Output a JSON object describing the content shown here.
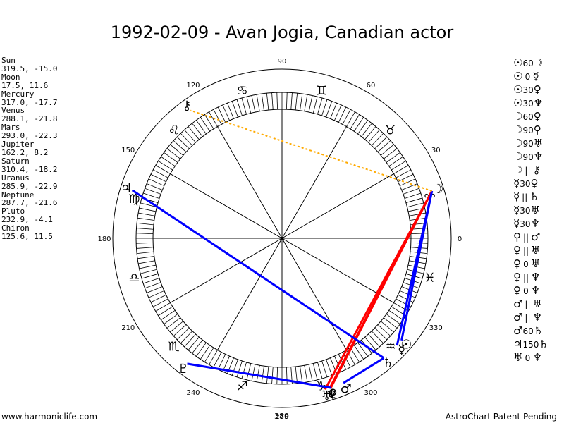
{
  "title": "1992-02-09 - Avan Jogia, Canadian actor",
  "planets": [
    {
      "name": "Sun",
      "symbol": "☉",
      "coords": "319.5, -15.0",
      "lon": 319.5
    },
    {
      "name": "Moon",
      "symbol": "☽",
      "coords": "17.5, 11.6",
      "lon": 17.5
    },
    {
      "name": "Mercury",
      "symbol": "☿",
      "coords": "317.0, -17.7",
      "lon": 317.0
    },
    {
      "name": "Venus",
      "symbol": "♀",
      "coords": "288.1, -21.8",
      "lon": 288.1
    },
    {
      "name": "Mars",
      "symbol": "♂",
      "coords": "293.0, -22.3",
      "lon": 293.0
    },
    {
      "name": "Jupiter",
      "symbol": "♃",
      "coords": "162.2, 8.2",
      "lon": 162.2
    },
    {
      "name": "Saturn",
      "symbol": "♄",
      "coords": "310.4, -18.2",
      "lon": 310.4
    },
    {
      "name": "Uranus",
      "symbol": "♅",
      "coords": "285.9, -22.9",
      "lon": 285.9
    },
    {
      "name": "Neptune",
      "symbol": "♆",
      "coords": "287.7, -21.6",
      "lon": 287.7
    },
    {
      "name": "Pluto",
      "symbol": "♇",
      "coords": "232.9, -4.1",
      "lon": 232.9
    },
    {
      "name": "Chiron",
      "symbol": "⚷",
      "coords": "125.6, 11.5",
      "lon": 125.6
    }
  ],
  "aspect_list": [
    {
      "p1": "☉",
      "aspect": "60",
      "p2": "☽"
    },
    {
      "p1": "☉",
      "aspect": "0",
      "p2": "☿"
    },
    {
      "p1": "☉",
      "aspect": "30",
      "p2": "♀"
    },
    {
      "p1": "☉",
      "aspect": "30",
      "p2": "♆"
    },
    {
      "p1": "☽",
      "aspect": "60",
      "p2": "♀"
    },
    {
      "p1": "☽",
      "aspect": "90",
      "p2": "♀"
    },
    {
      "p1": "☽",
      "aspect": "90",
      "p2": "♅"
    },
    {
      "p1": "☽",
      "aspect": "90",
      "p2": "♆"
    },
    {
      "p1": "☽",
      "aspect": "||",
      "p2": "⚷"
    },
    {
      "p1": "☿",
      "aspect": "30",
      "p2": "♀"
    },
    {
      "p1": "☿",
      "aspect": "||",
      "p2": "♄"
    },
    {
      "p1": "☿",
      "aspect": "30",
      "p2": "♅"
    },
    {
      "p1": "☿",
      "aspect": "30",
      "p2": "♆"
    },
    {
      "p1": "♀",
      "aspect": "||",
      "p2": "♂"
    },
    {
      "p1": "♀",
      "aspect": "||",
      "p2": "♅"
    },
    {
      "p1": "♀",
      "aspect": "0",
      "p2": "♅"
    },
    {
      "p1": "♀",
      "aspect": "||",
      "p2": "♆"
    },
    {
      "p1": "♀",
      "aspect": "0",
      "p2": "♆"
    },
    {
      "p1": "♂",
      "aspect": "||",
      "p2": "♅"
    },
    {
      "p1": "♂",
      "aspect": "||",
      "p2": "♆"
    },
    {
      "p1": "♂",
      "aspect": "60",
      "p2": "♄"
    },
    {
      "p1": "♃",
      "aspect": "150",
      "p2": "♄"
    },
    {
      "p1": "♅",
      "aspect": "0",
      "p2": "♆"
    }
  ],
  "wheel": {
    "degree_labels": [
      "0",
      "30",
      "60",
      "90",
      "120",
      "150",
      "180",
      "210",
      "240",
      "270",
      "300",
      "330"
    ],
    "signs": [
      "♈",
      "♉",
      "♊",
      "♋",
      "♌",
      "♍",
      "♎",
      "♏",
      "♐",
      "♑",
      "♒",
      "♓"
    ],
    "bottom_value": "389"
  },
  "aspect_lines": [
    {
      "from": "Moon",
      "to": "Uranus",
      "color": "#ff0000"
    },
    {
      "from": "Moon",
      "to": "Neptune",
      "color": "#ff0000"
    },
    {
      "from": "Moon",
      "to": "Venus",
      "color": "#ff0000"
    },
    {
      "from": "Moon",
      "to": "Mercury",
      "color": "#0000ff"
    },
    {
      "from": "Moon",
      "to": "Sun",
      "color": "#0000ff"
    },
    {
      "from": "Moon",
      "to": "Chiron",
      "color": "#ffaa00",
      "style": "dotted"
    },
    {
      "from": "Jupiter",
      "to": "Saturn",
      "color": "#0000ff"
    },
    {
      "from": "Mars",
      "to": "Saturn",
      "color": "#0000ff"
    },
    {
      "from": "Pluto",
      "to": "Venus",
      "color": "#0000ff"
    }
  ],
  "footer": {
    "left": "www.harmoniclife.com",
    "right": "AstroChart Patent Pending"
  }
}
